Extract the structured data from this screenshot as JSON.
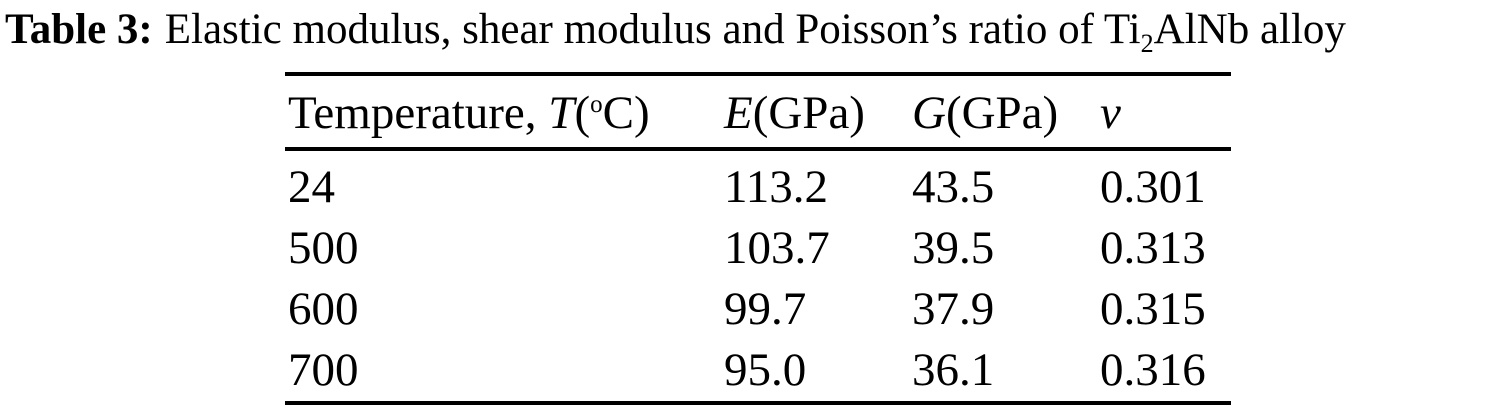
{
  "page": {
    "background_color": "#ffffff",
    "text_color": "#000000"
  },
  "title": {
    "label": "Table 3:",
    "caption_pre_subscript": "Elastic modulus, shear modulus and Poisson’s ratio of Ti",
    "subscript": "2",
    "caption_post_subscript": "AlNb alloy"
  },
  "table": {
    "header": {
      "temperature_label": "Temperature, ",
      "temperature_symbol": "T",
      "temperature_unit_open": "(",
      "temperature_unit_sup": "o",
      "temperature_unit_close": "C)",
      "e_symbol": "E",
      "e_unit": "(GPa)",
      "g_symbol": "G",
      "g_unit": "(GPa)",
      "nu_symbol": "ν"
    },
    "rows": [
      {
        "temperature": "24",
        "e": "113.2",
        "g": "43.5",
        "nu": "0.301"
      },
      {
        "temperature": "500",
        "e": "103.7",
        "g": "39.5",
        "nu": "0.313"
      },
      {
        "temperature": "600",
        "e": "99.7",
        "g": "37.9",
        "nu": "0.315"
      },
      {
        "temperature": "700",
        "e": "95.0",
        "g": "36.1",
        "nu": "0.316"
      }
    ]
  },
  "chart_data": {
    "type": "table",
    "title": "Table 3: Elastic modulus, shear modulus and Poisson's ratio of Ti2AlNb alloy",
    "columns": [
      "Temperature, T(°C)",
      "E(GPa)",
      "G(GPa)",
      "ν"
    ],
    "rows": [
      [
        "24",
        "113.2",
        "43.5",
        "0.301"
      ],
      [
        "500",
        "103.7",
        "39.5",
        "0.313"
      ],
      [
        "600",
        "99.7",
        "37.9",
        "0.315"
      ],
      [
        "700",
        "95.0",
        "36.1",
        "0.316"
      ]
    ]
  }
}
